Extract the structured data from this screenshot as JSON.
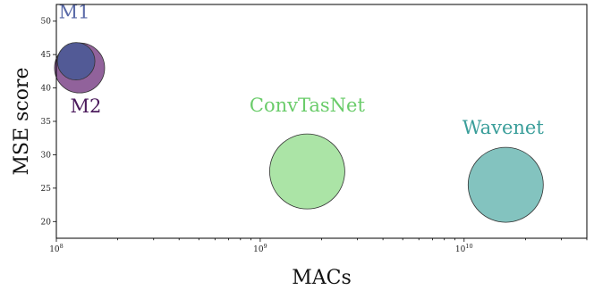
{
  "chart_data": {
    "type": "scatter",
    "xlabel": "MACs",
    "ylabel": "MSE score",
    "xscale": "log",
    "xlim": [
      100000000,
      40000000000
    ],
    "ylim": [
      17.5,
      52.5
    ],
    "x_ticks": [
      {
        "value": 100000000,
        "base": "10",
        "exp": "8"
      },
      {
        "value": 1000000000,
        "base": "10",
        "exp": "9"
      },
      {
        "value": 10000000000,
        "base": "10",
        "exp": "10"
      }
    ],
    "y_ticks": [
      "20",
      "25",
      "30",
      "35",
      "40",
      "45",
      "50"
    ],
    "grid": false,
    "points": [
      {
        "name": "M2",
        "x": 130000000,
        "y": 43,
        "size": "small-medium",
        "color": "#8b5a96",
        "label_color": "#4b1a5c"
      },
      {
        "name": "M1",
        "x": 125000000,
        "y": 44,
        "size": "small",
        "color": "#4f5a96",
        "label_color": "#5a6aa8"
      },
      {
        "name": "ConvTasNet",
        "x": 1700000000,
        "y": 27.5,
        "size": "large",
        "color": "#a6e3a1",
        "label_color": "#6acc6a"
      },
      {
        "name": "Wavenet",
        "x": 16000000000,
        "y": 25.5,
        "size": "large",
        "color": "#7cc0bc",
        "label_color": "#3a9e9a"
      }
    ]
  }
}
